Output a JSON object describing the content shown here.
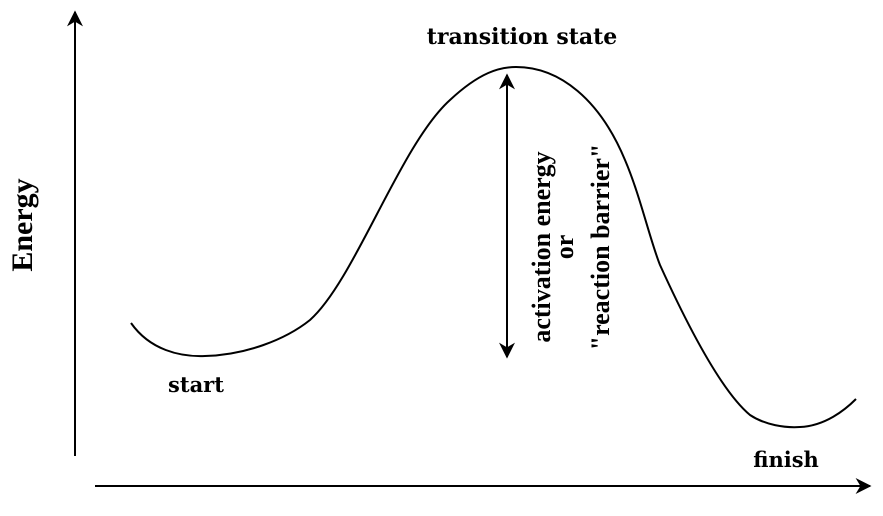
{
  "axis": {
    "y_label": "Energy"
  },
  "labels": {
    "transition_state": "transition state",
    "start": "start",
    "finish": "finish",
    "activation_line1": "activation energy",
    "activation_line2": "or",
    "activation_line3": "\"reaction barrier\""
  },
  "colors": {
    "ink": "#000000",
    "background": "#ffffff"
  }
}
